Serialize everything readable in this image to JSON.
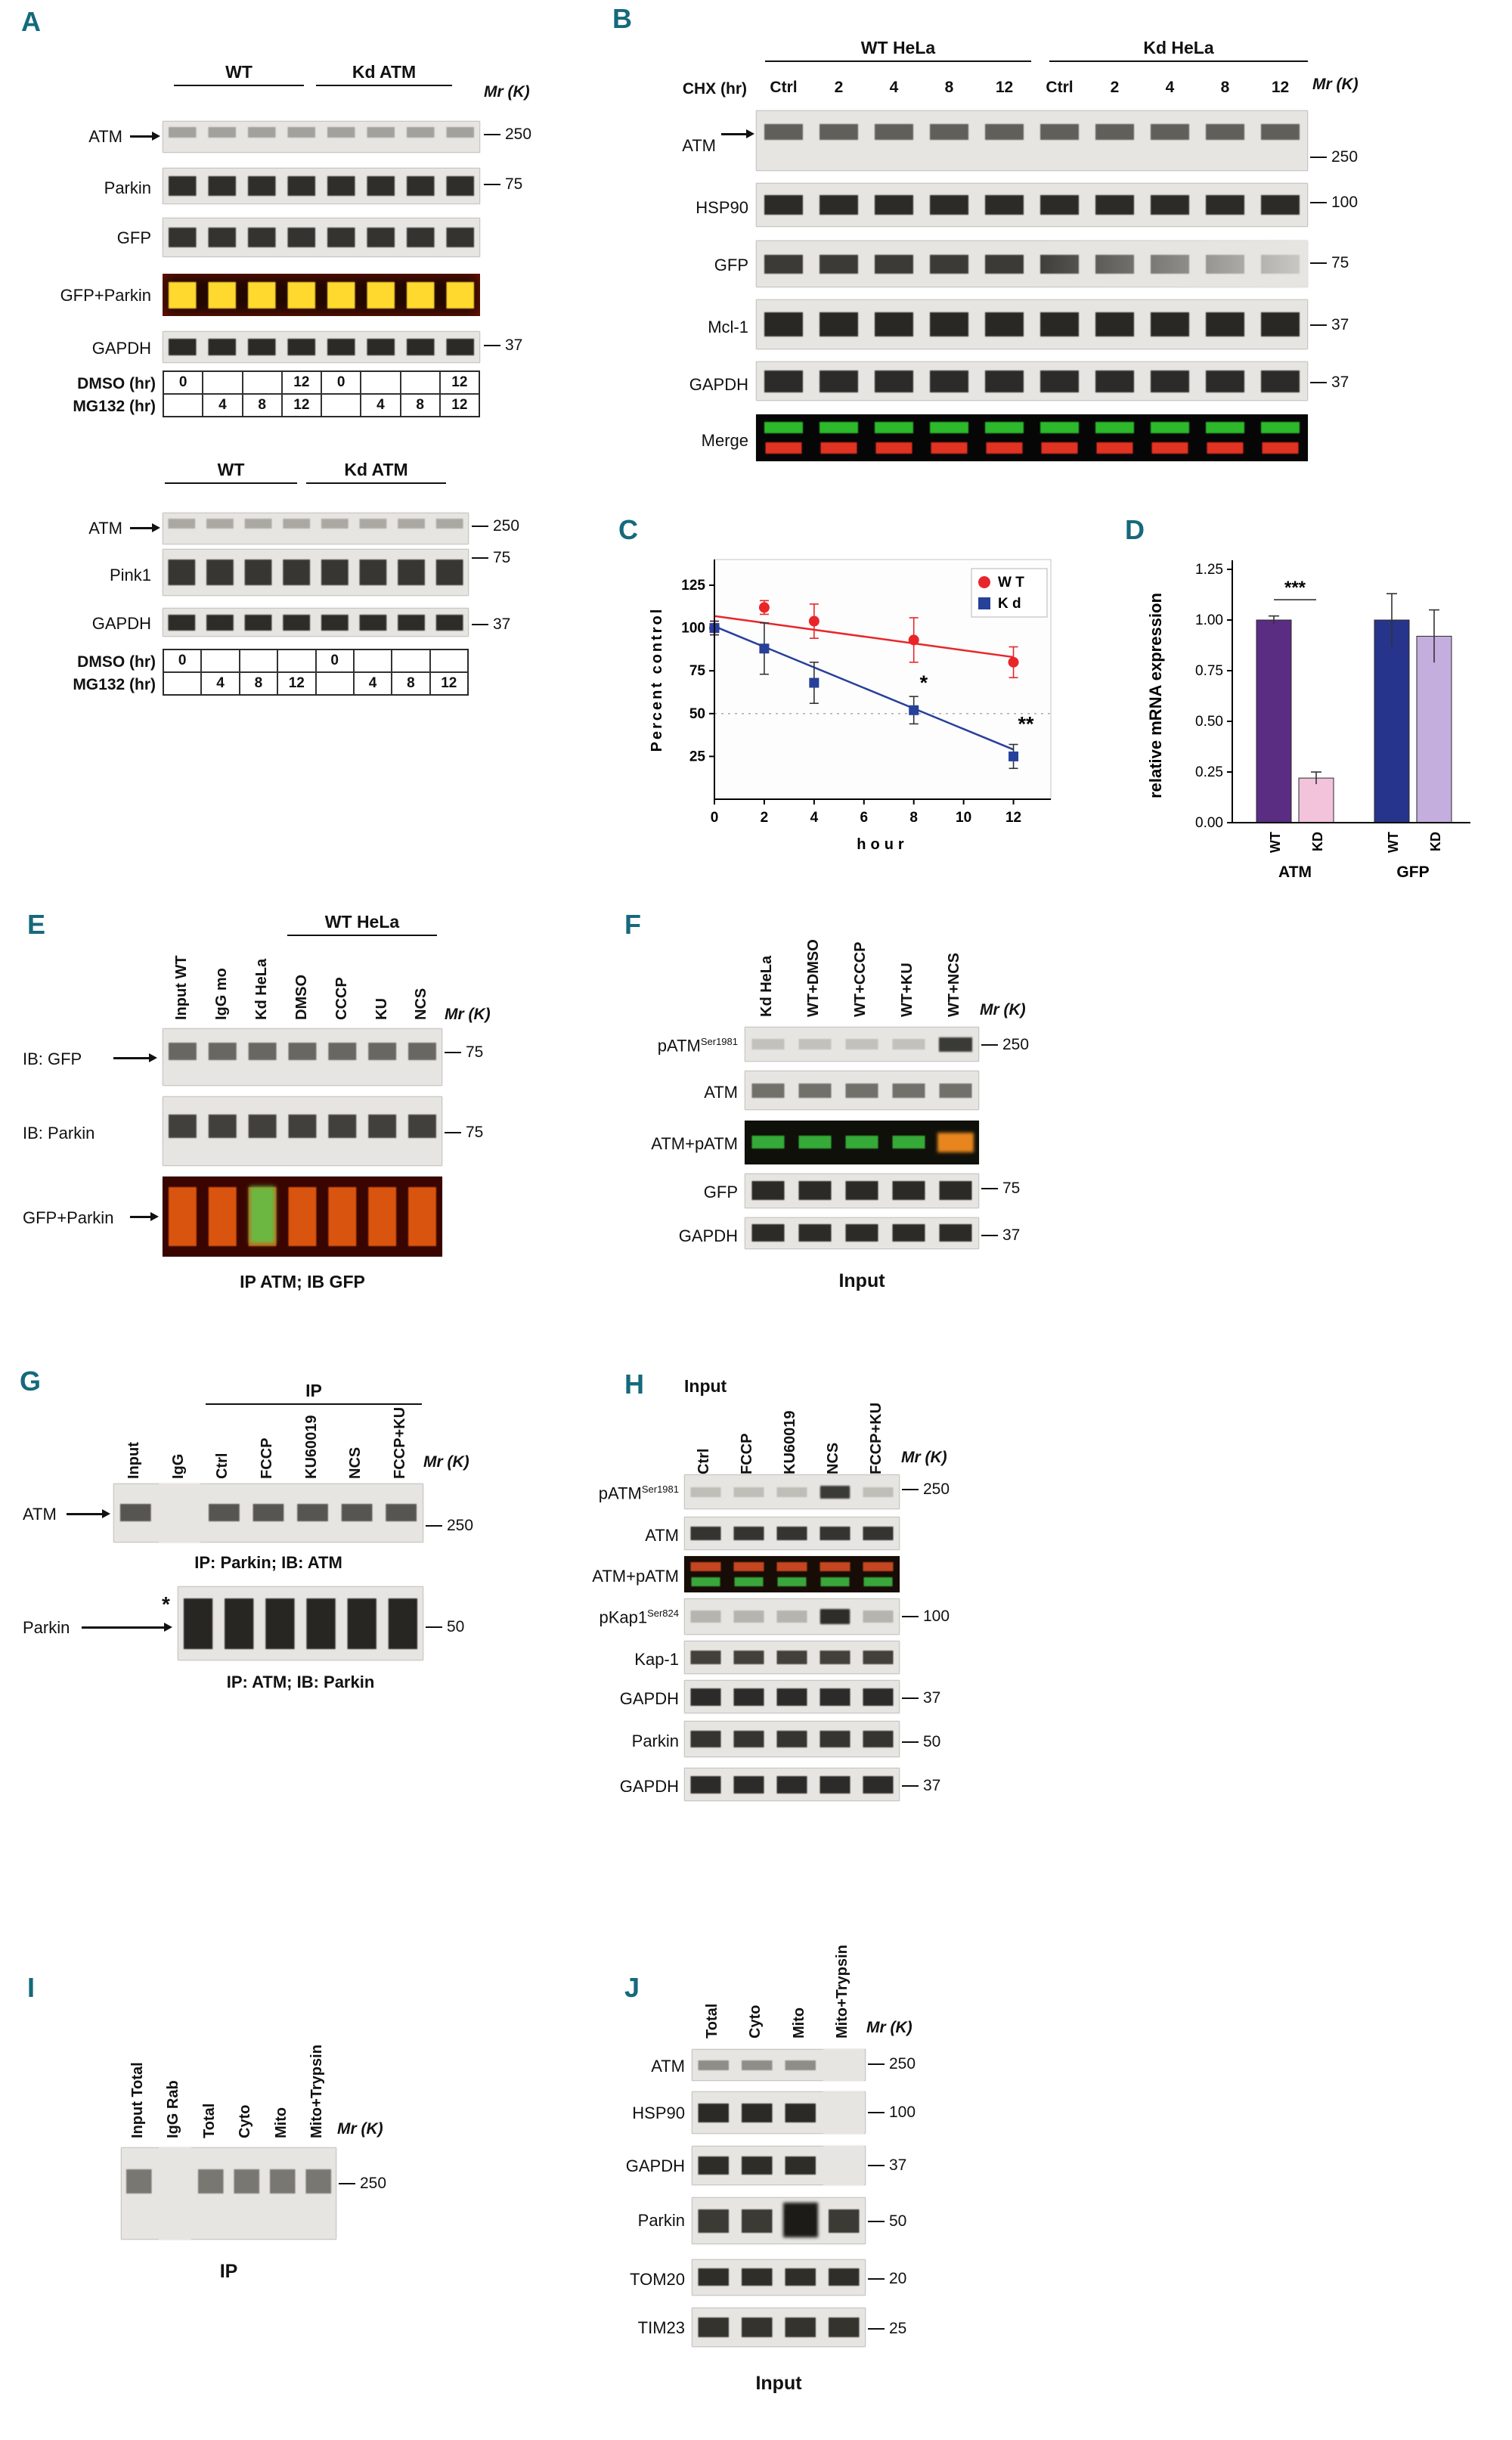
{
  "colors": {
    "panel_label": "#15697c",
    "wt_series": "#e8262a",
    "kd_series": "#27409a"
  },
  "A": {
    "label": "A",
    "mr_label": "Mr (K)",
    "block1": {
      "groups": [
        "WT",
        "Kd ATM"
      ],
      "rows": [
        {
          "label": "ATM",
          "marker": "250"
        },
        {
          "label": "Parkin",
          "marker": "75"
        },
        {
          "label": "GFP"
        },
        {
          "label": "GFP+Parkin"
        },
        {
          "label": "GAPDH",
          "marker": "37"
        }
      ],
      "table": {
        "row1_label": "DMSO (hr)",
        "row2_label": "MG132 (hr)",
        "row1": [
          "0",
          "",
          "",
          "12",
          "0",
          "",
          "",
          "12"
        ],
        "row2": [
          "",
          "4",
          "8",
          "12",
          "",
          "4",
          "8",
          "12"
        ]
      }
    },
    "block2": {
      "groups": [
        "WT",
        "Kd ATM"
      ],
      "rows": [
        {
          "label": "ATM",
          "marker": "250"
        },
        {
          "label": "Pink1",
          "marker": "75"
        },
        {
          "label": "GAPDH",
          "marker": "37"
        }
      ],
      "table": {
        "row1_label": "DMSO  (hr)",
        "row2_label": "MG132 (hr)",
        "row1": [
          "0",
          "",
          "",
          "",
          "0",
          "",
          "",
          ""
        ],
        "row2": [
          "",
          "4",
          "8",
          "12",
          "",
          "4",
          "8",
          "12"
        ]
      }
    }
  },
  "B": {
    "label": "B",
    "mr_label": "Mr (K)",
    "groups": [
      "WT HeLa",
      "Kd HeLa"
    ],
    "chx_label": "CHX (hr)",
    "lanes": [
      "Ctrl",
      "2",
      "4",
      "8",
      "12",
      "Ctrl",
      "2",
      "4",
      "8",
      "12"
    ],
    "rows": [
      {
        "label": "ATM",
        "marker": "250"
      },
      {
        "label": "HSP90",
        "marker": "100"
      },
      {
        "label": "GFP",
        "marker": "75"
      },
      {
        "label": "Mcl-1",
        "marker": "37"
      },
      {
        "label": "GAPDH",
        "marker": "37"
      },
      {
        "label": "Merge"
      }
    ]
  },
  "C": {
    "label": "C"
  },
  "D": {
    "label": "D"
  },
  "E": {
    "label": "E",
    "mr_label": "Mr (K)",
    "group_label": "WT HeLa",
    "lanes": [
      "Input WT",
      "IgG mo",
      "Kd HeLa",
      "DMSO",
      "CCCP",
      "KU",
      "NCS"
    ],
    "rows": [
      {
        "label": "IB: GFP",
        "marker": "75"
      },
      {
        "label": "IB: Parkin",
        "marker": "75"
      },
      {
        "label": "GFP+Parkin"
      }
    ],
    "caption": "IP ATM; IB GFP"
  },
  "F": {
    "label": "F",
    "mr_label": "Mr (K)",
    "lanes": [
      "Kd HeLa",
      "WT+DMSO",
      "WT+CCCP",
      "WT+KU",
      "WT+NCS"
    ],
    "rows": [
      {
        "label": "pATM",
        "sup": "Ser1981",
        "marker": "250"
      },
      {
        "label": "ATM"
      },
      {
        "label": "ATM+pATM"
      },
      {
        "label": "GFP",
        "marker": "75"
      },
      {
        "label": "GAPDH",
        "marker": "37"
      }
    ],
    "caption": "Input"
  },
  "G": {
    "label": "G",
    "mr_label": "Mr (K)",
    "ip_label": "IP",
    "lanes": [
      "Input",
      "IgG",
      "Ctrl",
      "FCCP",
      "KU60019",
      "NCS",
      "FCCP+KU"
    ],
    "blot1": {
      "label": "ATM",
      "marker": "250",
      "caption": "IP: Parkin; IB: ATM"
    },
    "blot2": {
      "label": "Parkin",
      "asterisk": "*",
      "marker": "50",
      "caption": "IP: ATM; IB: Parkin"
    }
  },
  "H": {
    "label": "H",
    "mr_label": "Mr (K)",
    "input_label": "Input",
    "lanes": [
      "Ctrl",
      "FCCP",
      "KU60019",
      "NCS",
      "FCCP+KU"
    ],
    "rows": [
      {
        "label": "pATM",
        "sup": "Ser1981",
        "marker": "250"
      },
      {
        "label": "ATM"
      },
      {
        "label": "ATM+pATM"
      },
      {
        "label": "pKap1",
        "sup": "Ser824",
        "marker": "100"
      },
      {
        "label": "Kap-1"
      },
      {
        "label": "GAPDH",
        "marker": "37"
      },
      {
        "label": "Parkin",
        "marker": "50"
      },
      {
        "label": "GAPDH",
        "marker": "37"
      }
    ]
  },
  "I": {
    "label": "I",
    "mr_label": "Mr (K)",
    "lanes": [
      "Input Total",
      "IgG Rab",
      "Total",
      "Cyto",
      "Mito",
      "Mito+Trypsin"
    ],
    "marker": "250",
    "caption": "IP"
  },
  "J": {
    "label": "J",
    "mr_label": "Mr (K)",
    "lanes": [
      "Total",
      "Cyto",
      "Mito",
      "Mito+Trypsin"
    ],
    "rows": [
      {
        "label": "ATM",
        "marker": "250"
      },
      {
        "label": "HSP90",
        "marker": "100"
      },
      {
        "label": "GAPDH",
        "marker": "37"
      },
      {
        "label": "Parkin",
        "marker": "50"
      },
      {
        "label": "TOM20",
        "marker": "20"
      },
      {
        "label": "TIM23",
        "marker": "25"
      }
    ],
    "caption": "Input"
  },
  "chart_data": [
    {
      "id": "C",
      "type": "line",
      "title": "",
      "xlabel": "hour",
      "ylabel": "Percent control",
      "xlim": [
        0,
        13.5
      ],
      "ylim": [
        0,
        140
      ],
      "xticks": [
        0,
        2,
        4,
        6,
        8,
        10,
        12
      ],
      "yticks": [
        25,
        50,
        75,
        100,
        125
      ],
      "grid": false,
      "reference_line_y": 50,
      "legend_position": "top-right",
      "series": [
        {
          "name": "W T",
          "color": "#e8262a",
          "ecolor": "#e8262a",
          "marker": "circle",
          "x": [
            0,
            2,
            4,
            8,
            12
          ],
          "y": [
            100,
            112,
            104,
            93,
            80
          ],
          "err": [
            4,
            4,
            10,
            13,
            9
          ],
          "trend": {
            "x": [
              0,
              12
            ],
            "y": [
              107,
              83
            ]
          }
        },
        {
          "name": "K d",
          "color": "#27409a",
          "ecolor": "#333333",
          "marker": "square",
          "x": [
            0,
            2,
            4,
            8,
            12
          ],
          "y": [
            100,
            88,
            68,
            52,
            25
          ],
          "err": [
            4,
            15,
            12,
            8,
            7
          ],
          "trend": {
            "x": [
              0,
              12
            ],
            "y": [
              101,
              29
            ]
          }
        }
      ],
      "annotations": [
        {
          "text": "*",
          "x": 8.4,
          "y": 64
        },
        {
          "text": "**",
          "x": 12.5,
          "y": 40
        }
      ]
    },
    {
      "id": "D",
      "type": "bar",
      "ylabel": "relative mRNA expression",
      "ylim": [
        0,
        1.25
      ],
      "yticks": [
        "0.00",
        "0.25",
        "0.50",
        "0.75",
        "1.00",
        "1.25"
      ],
      "groups": [
        "ATM",
        "GFP"
      ],
      "bars": [
        {
          "group": "ATM",
          "label": "WT",
          "value": 1.0,
          "err": 0.02,
          "color": "#5a2d83"
        },
        {
          "group": "ATM",
          "label": "KD",
          "value": 0.22,
          "err": 0.03,
          "color": "#f2c3da"
        },
        {
          "group": "GFP",
          "label": "WT",
          "value": 1.0,
          "err": 0.13,
          "color": "#27348b"
        },
        {
          "group": "GFP",
          "label": "KD",
          "value": 0.92,
          "err": 0.13,
          "color": "#c4aedd"
        }
      ],
      "significance": {
        "text": "***",
        "group": "ATM",
        "y": 1.1
      }
    }
  ]
}
